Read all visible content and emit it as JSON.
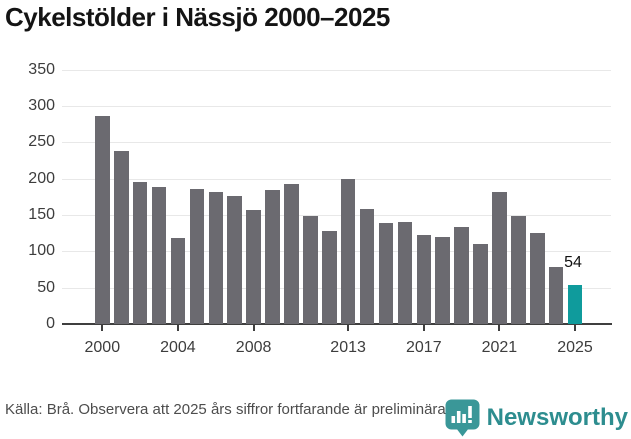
{
  "title": "Cykelstölder i Nässjö 2000–2025",
  "chart_data": {
    "type": "bar",
    "title": "Cykelstölder i Nässjö 2000–2025",
    "x": [
      2000,
      2001,
      2002,
      2003,
      2004,
      2005,
      2006,
      2007,
      2008,
      2009,
      2010,
      2011,
      2012,
      2013,
      2014,
      2015,
      2016,
      2017,
      2018,
      2019,
      2020,
      2021,
      2022,
      2023,
      2024,
      2025
    ],
    "values": [
      287,
      238,
      195,
      189,
      118,
      186,
      182,
      176,
      157,
      185,
      193,
      149,
      128,
      200,
      159,
      139,
      141,
      122,
      120,
      133,
      110,
      182,
      149,
      126,
      78,
      54
    ],
    "bar_color": "#6b6a70",
    "highlight_year": 2025,
    "highlight_color": "#0f9b9c",
    "annotation": {
      "text": "54",
      "year": 2025,
      "value": 54
    },
    "xlabel": "",
    "ylabel": "",
    "ylim": [
      0,
      350
    ],
    "yticks": [
      0,
      50,
      100,
      150,
      200,
      250,
      300,
      350
    ],
    "xticks": [
      2000,
      2004,
      2008,
      2013,
      2017,
      2021,
      2025
    ],
    "grid": true,
    "legend_position": "none"
  },
  "footer": {
    "source": "Källa: Brå. Observera att 2025 års siffror fortfarande är preliminära.",
    "brand": "Newsworthy"
  },
  "colors": {
    "bar_gray": "#6b6a70",
    "bar_teal": "#0f9b9c",
    "gridline": "#e8e8e8",
    "axis": "#3f3f3f",
    "axis_text": "#3d3d3d",
    "title_text": "#141414",
    "footer_text": "#4d4d4d",
    "brand_teal": "#2d8d8f",
    "logo_fill": "#3a9798"
  }
}
